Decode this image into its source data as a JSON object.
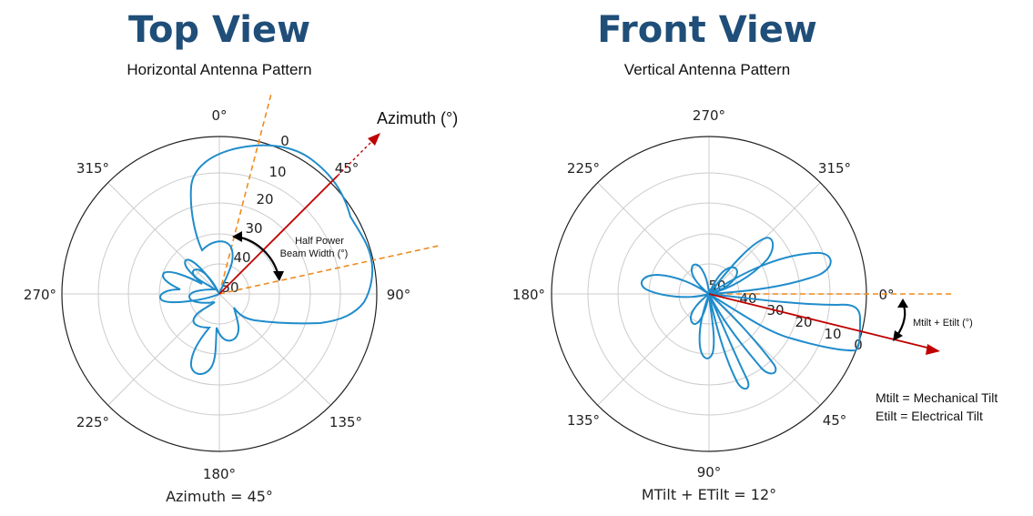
{
  "top_view": {
    "title": "Top View",
    "subtitle": "Horizontal Antenna Pattern",
    "angle_labels": [
      "0°",
      "45°",
      "90°",
      "135°",
      "180°",
      "225°",
      "270°",
      "315°"
    ],
    "radial_labels": [
      "0",
      "10",
      "20",
      "30",
      "40",
      "50"
    ],
    "azimuth_arrow_label": "Azimuth (°)",
    "hpbw_label_line1": "Half Power",
    "hpbw_label_line2": "Beam Width (°)",
    "caption": "Azimuth = 45°"
  },
  "front_view": {
    "title": "Front View",
    "subtitle": "Vertical Antenna Pattern",
    "angle_labels": [
      "270°",
      "315°",
      "0°",
      "45°",
      "90°",
      "135°",
      "180°",
      "225°"
    ],
    "radial_labels": [
      "0",
      "10",
      "20",
      "30",
      "40",
      "50"
    ],
    "tilt_label": "Mtilt + Etilt (°)",
    "legend_line1": "Mtilt = Mechanical Tilt",
    "legend_line2": "Etilt = Electrical Tilt",
    "caption": "MTilt + ETilt = 12°"
  },
  "colors": {
    "title": "#1f4e79",
    "pattern": "#1f8ccb",
    "direction_arrow": "#c00000",
    "reference_line": "#f08a1c",
    "grid": "#cccccc"
  }
}
